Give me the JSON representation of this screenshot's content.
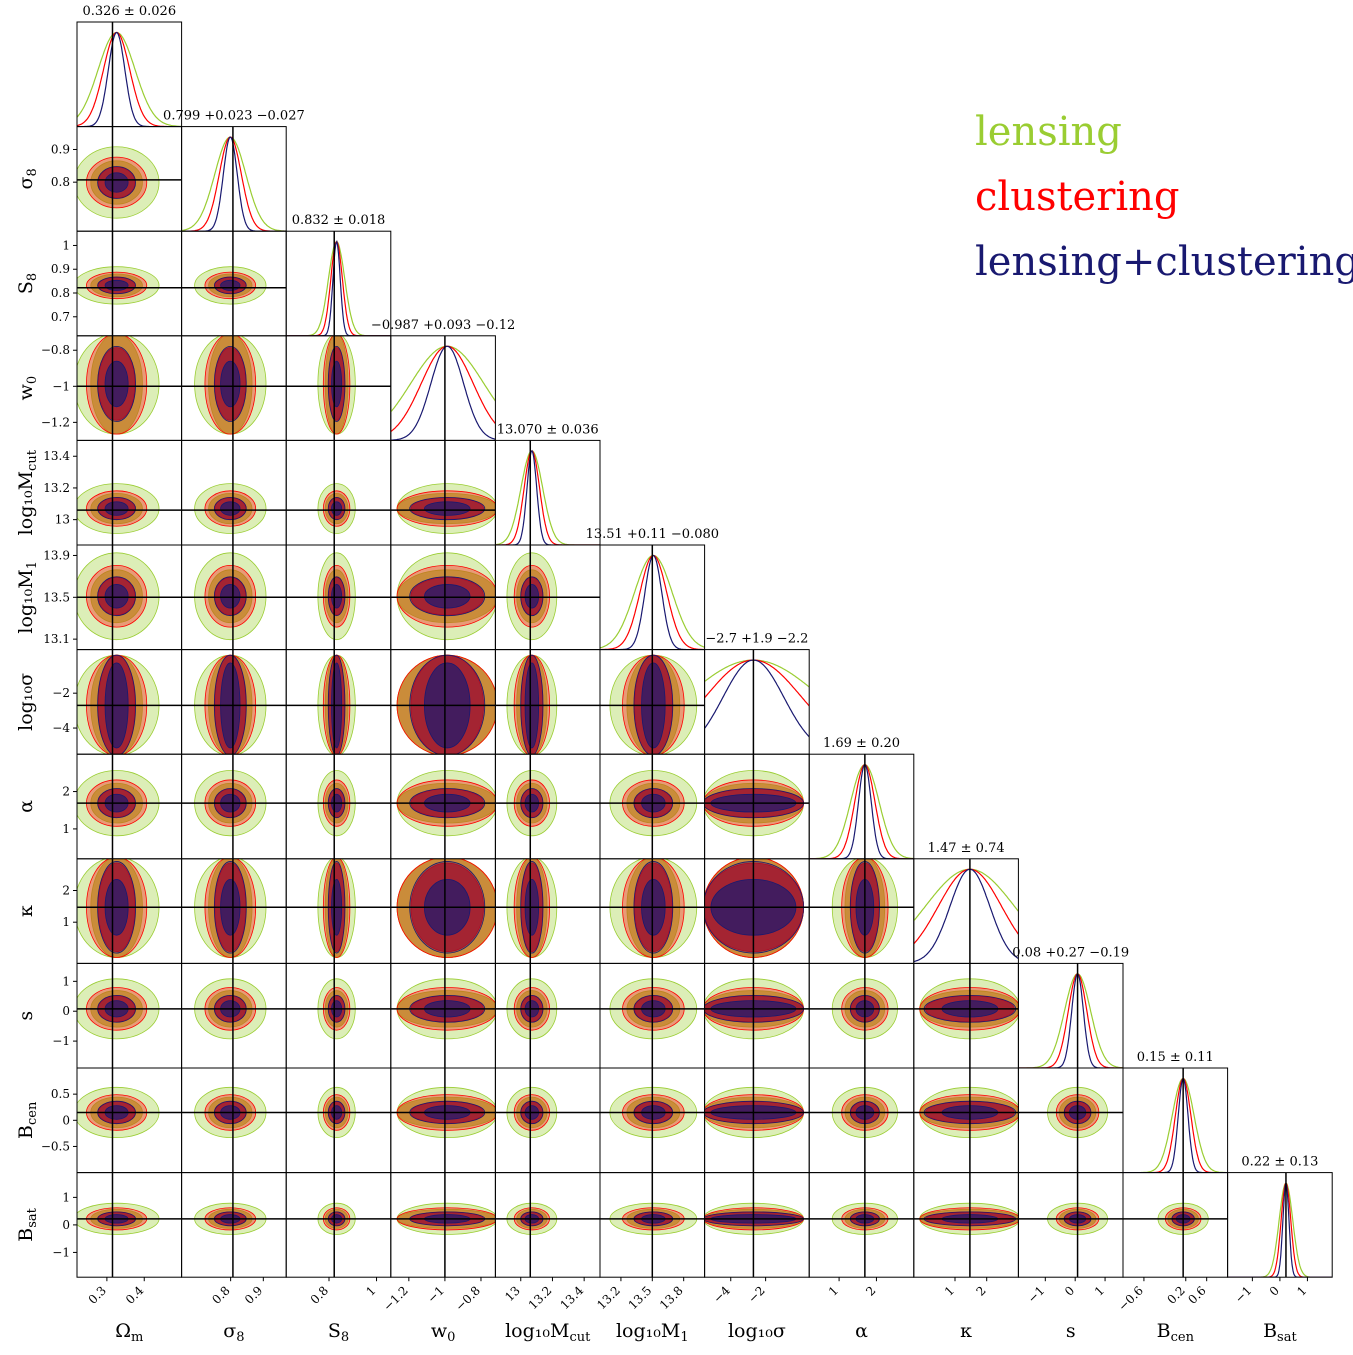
{
  "chart_data": {
    "type": "corner",
    "parameters": [
      {
        "label": "Ωm",
        "sub": "",
        "ylabel_main": "",
        "ylabel_sub": "",
        "range": [
          0.22,
          0.5
        ],
        "truth": 0.315,
        "ticks": [
          0.3,
          0.4
        ],
        "mean": 0.326,
        "err_lo": 0.026,
        "err_hi": 0.026,
        "title": "0.326 ± 0.026",
        "xlabel_main": "Ω",
        "xlabel_sub": "m"
      },
      {
        "label": "σ8",
        "range": [
          0.65,
          0.97
        ],
        "truth": 0.807,
        "ticks": [
          0.8,
          0.9
        ],
        "mean": 0.799,
        "err_lo": 0.027,
        "err_hi": 0.023,
        "title": "0.799 +0.023 −0.027",
        "xlabel_main": "σ",
        "xlabel_sub": "8",
        "ylabel_main": "σ",
        "ylabel_sub": "8"
      },
      {
        "label": "S8",
        "range": [
          0.62,
          1.06
        ],
        "truth": 0.822,
        "ticks": [
          0.7,
          0.8,
          0.9,
          1.0
        ],
        "xticks": [
          0.8,
          1.0
        ],
        "mean": 0.832,
        "err_lo": 0.018,
        "err_hi": 0.018,
        "title": "0.832 ± 0.018",
        "xlabel_main": "S",
        "xlabel_sub": "8",
        "ylabel_main": "S",
        "ylabel_sub": "8"
      },
      {
        "label": "w0",
        "range": [
          -1.3,
          -0.72
        ],
        "truth": -1.0,
        "ticks": [
          -1.2,
          -1.0,
          -0.8
        ],
        "mean": -0.987,
        "err_lo": 0.12,
        "err_hi": 0.093,
        "title": "−0.987 +0.093 −0.12",
        "xlabel_main": "w",
        "xlabel_sub": "0",
        "ylabel_main": "w",
        "ylabel_sub": "0"
      },
      {
        "label": "log10Mcut",
        "range": [
          12.84,
          13.5
        ],
        "truth": 13.06,
        "ticks": [
          13.0,
          13.2,
          13.4
        ],
        "mean": 13.07,
        "err_lo": 0.036,
        "err_hi": 0.036,
        "title": "13.070 ± 0.036",
        "xlabel_main": "log₁₀M",
        "xlabel_sub": "cut",
        "ylabel_main": "log₁₀M",
        "ylabel_sub": "cut"
      },
      {
        "label": "log10M1",
        "range": [
          13.0,
          14.0
        ],
        "truth": 13.5,
        "ticks": [
          13.1,
          13.5,
          13.9
        ],
        "xticks": [
          13.2,
          13.5,
          13.8
        ],
        "mean": 13.51,
        "err_lo": 0.08,
        "err_hi": 0.11,
        "title": "13.51 +0.11 −0.080",
        "xlabel_main": "log₁₀M",
        "xlabel_sub": "1",
        "ylabel_main": "log₁₀M",
        "ylabel_sub": "1"
      },
      {
        "label": "log10σ",
        "range": [
          -5.5,
          0.5
        ],
        "truth": -2.7,
        "ticks": [
          -4,
          -2
        ],
        "mean": -2.7,
        "err_lo": 2.2,
        "err_hi": 1.9,
        "title": "−2.7 +1.9 −2.2",
        "xlabel_main": "log₁₀σ",
        "xlabel_sub": "",
        "ylabel_main": "log₁₀σ",
        "ylabel_sub": ""
      },
      {
        "label": "α",
        "range": [
          0.2,
          3.0
        ],
        "truth": 1.69,
        "ticks": [
          1,
          2
        ],
        "mean": 1.69,
        "err_lo": 0.2,
        "err_hi": 0.2,
        "title": "1.69 ± 0.20",
        "xlabel_main": "α",
        "xlabel_sub": "",
        "ylabel_main": "α",
        "ylabel_sub": ""
      },
      {
        "label": "κ",
        "range": [
          -0.3,
          3.0
        ],
        "truth": 1.47,
        "ticks": [
          1,
          2
        ],
        "mean": 1.47,
        "err_lo": 0.74,
        "err_hi": 0.74,
        "title": "1.47 ± 0.74",
        "xlabel_main": "κ",
        "xlabel_sub": "",
        "ylabel_main": "κ",
        "ylabel_sub": ""
      },
      {
        "label": "s",
        "range": [
          -1.9,
          1.6
        ],
        "truth": 0.08,
        "ticks": [
          -1,
          0,
          1
        ],
        "mean": 0.08,
        "err_lo": 0.19,
        "err_hi": 0.27,
        "title": "0.08 +0.27 −0.19",
        "xlabel_main": "s",
        "xlabel_sub": "",
        "ylabel_main": "s",
        "ylabel_sub": ""
      },
      {
        "label": "Bcen",
        "range": [
          -1.0,
          1.0
        ],
        "truth": 0.15,
        "ticks": [
          -0.5,
          0.0,
          0.5
        ],
        "xticks": [
          -0.6,
          0.2,
          0.6
        ],
        "mean": 0.15,
        "err_lo": 0.11,
        "err_hi": 0.11,
        "title": "0.15 ± 0.11",
        "xlabel_main": "B",
        "xlabel_sub": "cen",
        "ylabel_main": "B",
        "ylabel_sub": "cen"
      },
      {
        "label": "Bsat",
        "range": [
          -1.9,
          1.9
        ],
        "truth": 0.22,
        "ticks": [
          -1,
          0,
          1
        ],
        "mean": 0.22,
        "err_lo": 0.13,
        "err_hi": 0.13,
        "title": "0.22 ± 0.13",
        "xlabel_main": "B",
        "xlabel_sub": "sat",
        "ylabel_main": "B",
        "ylabel_sub": "sat"
      }
    ],
    "series": [
      {
        "name": "lensing",
        "color": "#9acd32",
        "width_scale": 1.9
      },
      {
        "name": "clustering",
        "color": "#ff0000",
        "width_scale": 1.35
      },
      {
        "name": "lensing+clustering",
        "color": "#191970",
        "width_scale": 0.85
      }
    ],
    "grid": false,
    "legend_position": "top-right"
  }
}
